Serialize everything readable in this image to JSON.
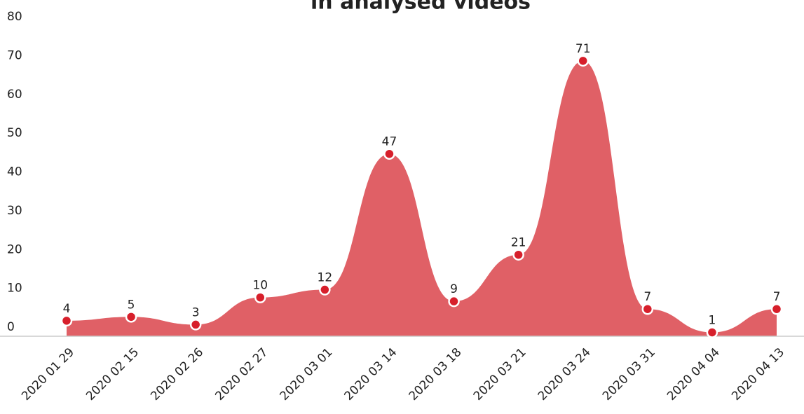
{
  "chart_data": {
    "type": "area",
    "title": "in analysed videos",
    "categories": [
      "2020 01 29",
      "2020 02 15",
      "2020 02 26",
      "2020 02 27",
      "2020 03 01",
      "2020 03 14",
      "2020 03 18",
      "2020 03 21",
      "2020 03 24",
      "2020 03 31",
      "2020 04 04",
      "2020 04 13"
    ],
    "values": [
      4,
      5,
      3,
      10,
      12,
      47,
      9,
      21,
      71,
      7,
      1,
      7
    ],
    "color": "#e06066",
    "point_color": "#d71f2b",
    "ylim": [
      0,
      80
    ],
    "yticks": [
      0,
      10,
      20,
      30,
      40,
      50,
      60,
      70,
      80
    ],
    "grid": false
  }
}
